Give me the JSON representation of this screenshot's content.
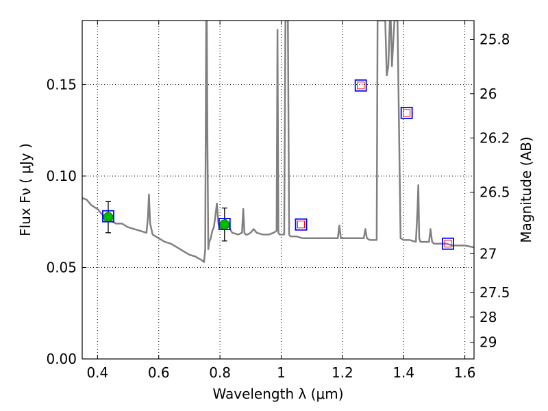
{
  "chart_data": {
    "type": "line",
    "xlabel": "Wavelength  λ (μm)",
    "ylabel": "Flux  Fν  ( μJy )",
    "ylabel_right": "Magnitude (AB)",
    "xlim": [
      0.35,
      1.63
    ],
    "ylim": [
      0.0,
      0.185
    ],
    "grid": true,
    "x_ticks": [
      {
        "value": 0.4,
        "label": "0.4"
      },
      {
        "value": 0.6,
        "label": "0.6"
      },
      {
        "value": 0.8,
        "label": "0.8"
      },
      {
        "value": 1.0,
        "label": "1"
      },
      {
        "value": 1.2,
        "label": "1.2"
      },
      {
        "value": 1.4,
        "label": "1.4"
      },
      {
        "value": 1.6,
        "label": "1.6"
      }
    ],
    "y_ticks": [
      {
        "value": 0.0,
        "label": "0.00"
      },
      {
        "value": 0.05,
        "label": "0.05"
      },
      {
        "value": 0.1,
        "label": "0.10"
      },
      {
        "value": 0.15,
        "label": "0.15"
      }
    ],
    "mag_ticks": [
      {
        "value": 0.1747,
        "label": "25.8"
      },
      {
        "value": 0.145,
        "label": "26"
      },
      {
        "value": 0.1208,
        "label": "26.2"
      },
      {
        "value": 0.0912,
        "label": "26.5"
      },
      {
        "value": 0.0575,
        "label": "27"
      },
      {
        "value": 0.0363,
        "label": "27.5"
      },
      {
        "value": 0.0229,
        "label": "28"
      },
      {
        "value": 0.0091,
        "label": "29"
      }
    ],
    "series": [
      {
        "type": "line",
        "color": "#808080",
        "x": [
          0.35,
          0.365,
          0.38,
          0.4,
          0.42,
          0.44,
          0.46,
          0.48,
          0.5,
          0.52,
          0.54,
          0.56,
          0.565,
          0.568,
          0.572,
          0.58,
          0.6,
          0.62,
          0.64,
          0.66,
          0.68,
          0.7,
          0.72,
          0.74,
          0.748,
          0.752,
          0.755,
          0.757,
          0.759,
          0.762,
          0.765,
          0.77,
          0.775,
          0.78,
          0.785,
          0.79,
          0.795,
          0.8,
          0.805,
          0.81,
          0.82,
          0.83,
          0.84,
          0.86,
          0.872,
          0.876,
          0.88,
          0.884,
          0.89,
          0.9,
          0.91,
          0.92,
          0.94,
          0.96,
          0.975,
          0.985,
          0.988,
          0.991,
          0.995,
          1.0,
          1.01,
          1.014,
          1.018,
          1.022,
          1.026,
          1.03,
          1.05,
          1.07,
          1.1,
          1.13,
          1.16,
          1.185,
          1.19,
          1.195,
          1.2,
          1.22,
          1.25,
          1.27,
          1.275,
          1.28,
          1.29,
          1.3,
          1.312,
          1.315,
          1.318,
          1.33,
          1.34,
          1.345,
          1.35,
          1.355,
          1.358,
          1.362,
          1.37,
          1.38,
          1.39,
          1.4,
          1.42,
          1.44,
          1.445,
          1.448,
          1.451,
          1.455,
          1.47,
          1.483,
          1.488,
          1.493,
          1.5,
          1.52,
          1.54,
          1.56,
          1.58,
          1.6,
          1.63
        ],
        "y": [
          0.088,
          0.087,
          0.084,
          0.082,
          0.078,
          0.076,
          0.074,
          0.074,
          0.072,
          0.071,
          0.07,
          0.069,
          0.078,
          0.09,
          0.074,
          0.068,
          0.066,
          0.064,
          0.063,
          0.061,
          0.059,
          0.057,
          0.056,
          0.054,
          0.053,
          0.06,
          0.185,
          0.185,
          0.12,
          0.06,
          0.064,
          0.066,
          0.07,
          0.072,
          0.078,
          0.085,
          0.074,
          0.071,
          0.072,
          0.073,
          0.076,
          0.072,
          0.069,
          0.068,
          0.069,
          0.082,
          0.069,
          0.068,
          0.068,
          0.069,
          0.071,
          0.069,
          0.068,
          0.068,
          0.069,
          0.07,
          0.18,
          0.069,
          0.068,
          0.068,
          0.068,
          0.185,
          0.185,
          0.185,
          0.068,
          0.067,
          0.067,
          0.066,
          0.066,
          0.066,
          0.066,
          0.066,
          0.073,
          0.066,
          0.066,
          0.066,
          0.066,
          0.066,
          0.071,
          0.066,
          0.065,
          0.065,
          0.065,
          0.185,
          0.185,
          0.185,
          0.185,
          0.155,
          0.16,
          0.185,
          0.185,
          0.16,
          0.185,
          0.185,
          0.066,
          0.065,
          0.065,
          0.064,
          0.08,
          0.095,
          0.066,
          0.064,
          0.064,
          0.064,
          0.071,
          0.064,
          0.063,
          0.063,
          0.063,
          0.062,
          0.062,
          0.062,
          0.061
        ]
      },
      {
        "type": "scatter",
        "marker": "circle",
        "color": "#00bb00",
        "x": [
          0.435,
          0.815
        ],
        "y": [
          0.0775,
          0.0735
        ],
        "yerr": [
          0.0085,
          0.009
        ]
      },
      {
        "type": "scatter",
        "marker": "open-square",
        "color": "#0000ff",
        "x": [
          0.435,
          0.815,
          1.065,
          1.26,
          1.41,
          1.545
        ],
        "y": [
          0.078,
          0.0738,
          0.0735,
          0.1495,
          0.1345,
          0.063
        ]
      },
      {
        "type": "scatter",
        "marker": "small-open-square",
        "color": "#ff0000",
        "x": [
          1.065,
          1.26,
          1.41,
          1.545
        ],
        "y": [
          0.0735,
          0.1495,
          0.1345,
          0.063
        ]
      }
    ]
  }
}
